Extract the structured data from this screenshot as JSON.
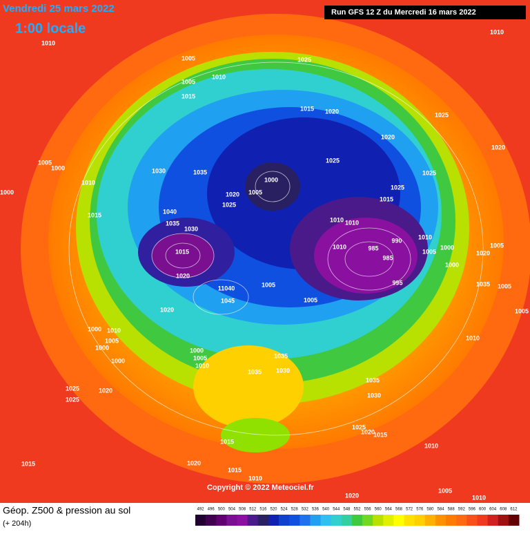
{
  "header": {
    "valid_date": "Vendredi 25 mars 2022",
    "local_time": "1:00 locale",
    "run": "Run GFS 12 Z du Mercredi 16 mars 2022"
  },
  "copyright": "Copyright © 2022 Meteociel.fr",
  "footer": {
    "title": "Géop. Z500 & pression au sol",
    "lead": "(+ 204h)"
  },
  "colorbar": {
    "ticks": [
      492,
      496,
      500,
      504,
      508,
      512,
      516,
      520,
      524,
      528,
      532,
      536,
      540,
      544,
      548,
      552,
      556,
      560,
      564,
      568,
      572,
      576,
      580,
      584,
      588,
      592,
      596,
      600,
      604,
      608,
      612
    ]
  },
  "isobar_labels": [
    "1010",
    "1005",
    "1010",
    "1005",
    "1015",
    "1025",
    "1015",
    "1020",
    "1020",
    "1025",
    "1020",
    "1010",
    "1025",
    "1025",
    "1025",
    "1015",
    "1005",
    "1000",
    "1010",
    "1000",
    "1015",
    "1030",
    "1035",
    "1000",
    "1005",
    "1020",
    "1025",
    "1040",
    "1035",
    "1030",
    "1010",
    "1010",
    "985",
    "990",
    "1010",
    "1005",
    "1000",
    "1005",
    "1020",
    "1015",
    "1020",
    "1010",
    "985",
    "995",
    "1000",
    "1035",
    "1005",
    "11040",
    "1005",
    "1045",
    "1005",
    "1020",
    "1000",
    "1010",
    "1005",
    "1000",
    "1000",
    "1000",
    "1005",
    "1010",
    "1035",
    "1030",
    "1035",
    "1035",
    "1030",
    "1010",
    "1005",
    "1025",
    "1025",
    "1020",
    "1025",
    "1020",
    "1015",
    "1015",
    "1010",
    "1015",
    "1020",
    "1015",
    "1010",
    "1005",
    "1020",
    "1010"
  ]
}
